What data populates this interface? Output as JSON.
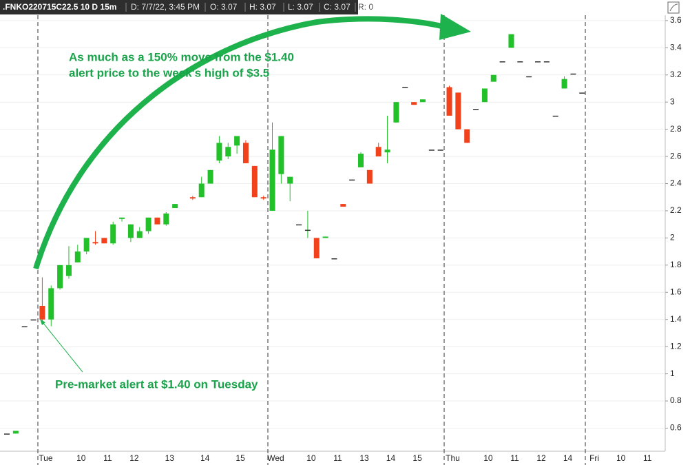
{
  "chart_data": {
    "type": "candlestick",
    "header": [
      ".FNKO220715C22.5 10 D 15m",
      "D: 7/7/22, 3:45 PM",
      "O: 3.07",
      "H: 3.07",
      "L: 3.07",
      "C: 3.07",
      "R: 0"
    ],
    "annotation_lines": [
      "As much as a 150% move from the $1.40",
      "alert price to the week's high of $3.5"
    ],
    "note": "Pre-market alert at $1.40 on Tuesday",
    "categories": [
      null,
      null,
      null,
      null,
      "Tue",
      null,
      null,
      null,
      "10",
      null,
      null,
      "11",
      null,
      null,
      "12",
      null,
      null,
      null,
      "13",
      null,
      null,
      null,
      "14",
      null,
      null,
      null,
      "15",
      null,
      null,
      null,
      "Wed",
      null,
      null,
      null,
      "10",
      null,
      null,
      "11",
      null,
      null,
      "13",
      null,
      null,
      "14",
      null,
      null,
      "15",
      null,
      null,
      null,
      "Thu",
      null,
      null,
      null,
      "10",
      null,
      null,
      "11",
      null,
      null,
      "12",
      null,
      null,
      "14",
      null,
      null,
      "Fri",
      null,
      null,
      "10",
      null,
      null,
      "11",
      null,
      null
    ],
    "open": [
      0.56,
      0.56,
      1.35,
      1.4,
      1.5,
      1.4,
      1.63,
      1.72,
      1.82,
      1.9,
      1.97,
      2.0,
      1.96,
      2.14,
      2.0,
      2.0,
      2.05,
      2.15,
      2.1,
      2.22,
      null,
      2.3,
      2.3,
      2.4,
      2.57,
      2.6,
      2.68,
      2.7,
      2.53,
      2.3,
      2.2,
      2.47,
      2.4,
      2.1,
      2.06,
      2.0,
      2.0,
      1.85,
      2.25,
      2.43,
      2.52,
      2.5,
      2.67,
      2.63,
      2.85,
      3.11,
      3.0,
      3.0,
      2.65,
      2.65,
      3.11,
      3.07,
      2.8,
      2.95,
      3.0,
      3.15,
      3.3,
      3.4,
      3.3,
      3.19,
      3.3,
      3.3,
      2.9,
      3.1,
      3.21,
      3.07,
      null,
      null,
      null,
      null,
      null,
      null,
      null,
      null,
      null
    ],
    "high": [
      0.56,
      0.58,
      1.35,
      1.4,
      1.71,
      1.65,
      1.8,
      1.94,
      1.95,
      2.0,
      2.05,
      2.0,
      2.12,
      2.15,
      2.1,
      2.08,
      2.15,
      2.15,
      2.19,
      2.25,
      null,
      2.31,
      2.45,
      2.5,
      2.75,
      2.7,
      2.75,
      2.72,
      2.53,
      2.31,
      2.85,
      2.75,
      2.45,
      2.1,
      2.2,
      2.0,
      2.01,
      1.85,
      2.25,
      2.43,
      2.63,
      2.5,
      2.7,
      2.9,
      3.0,
      3.11,
      3.0,
      3.02,
      2.65,
      2.65,
      3.12,
      3.07,
      2.8,
      2.95,
      3.1,
      3.2,
      3.3,
      3.5,
      3.3,
      3.19,
      3.3,
      3.3,
      2.9,
      3.19,
      3.21,
      3.07,
      null,
      null,
      null,
      null,
      null,
      null,
      null,
      null,
      null
    ],
    "low": [
      0.56,
      0.56,
      1.35,
      1.4,
      1.38,
      1.35,
      1.62,
      1.7,
      1.82,
      1.88,
      1.95,
      1.96,
      1.95,
      2.12,
      1.97,
      2.0,
      2.03,
      2.1,
      2.09,
      2.22,
      null,
      2.28,
      2.3,
      2.4,
      2.55,
      2.58,
      2.62,
      2.55,
      2.3,
      2.28,
      2.2,
      2.4,
      2.27,
      2.1,
      2.0,
      1.85,
      2.0,
      1.85,
      2.23,
      2.43,
      2.52,
      2.4,
      2.6,
      2.55,
      2.85,
      3.11,
      2.98,
      3.0,
      2.65,
      2.65,
      2.9,
      2.8,
      2.7,
      2.95,
      3.0,
      3.15,
      3.3,
      3.4,
      3.3,
      3.19,
      3.3,
      3.3,
      2.9,
      3.1,
      3.21,
      3.07,
      null,
      null,
      null,
      null,
      null,
      null,
      null,
      null,
      null
    ],
    "close": [
      0.56,
      0.58,
      1.35,
      1.4,
      1.4,
      1.63,
      1.8,
      1.8,
      1.9,
      2.0,
      1.96,
      1.96,
      2.1,
      2.15,
      2.1,
      2.05,
      2.15,
      2.1,
      2.18,
      2.25,
      null,
      2.29,
      2.4,
      2.5,
      2.7,
      2.67,
      2.75,
      2.55,
      2.3,
      2.29,
      2.65,
      2.75,
      2.45,
      2.1,
      2.06,
      1.85,
      2.01,
      1.85,
      2.23,
      2.43,
      2.62,
      2.4,
      2.6,
      2.65,
      3.0,
      3.11,
      2.98,
      3.02,
      2.65,
      2.65,
      2.9,
      2.8,
      2.7,
      2.95,
      3.1,
      3.2,
      3.3,
      3.5,
      3.3,
      3.19,
      3.3,
      3.3,
      2.9,
      3.17,
      3.21,
      3.07,
      null,
      null,
      null,
      null,
      null,
      null,
      null,
      null,
      null
    ],
    "up_color": "#22c12a",
    "down_color": "#f2421c",
    "ylim": [
      0.43,
      3.64
    ],
    "yticks": [
      0.6,
      0.8,
      1,
      1.2,
      1.4,
      1.6,
      1.8,
      2,
      2.2,
      2.4,
      2.6,
      2.8,
      3,
      3.2,
      3.4,
      3.6
    ],
    "grid": true
  }
}
